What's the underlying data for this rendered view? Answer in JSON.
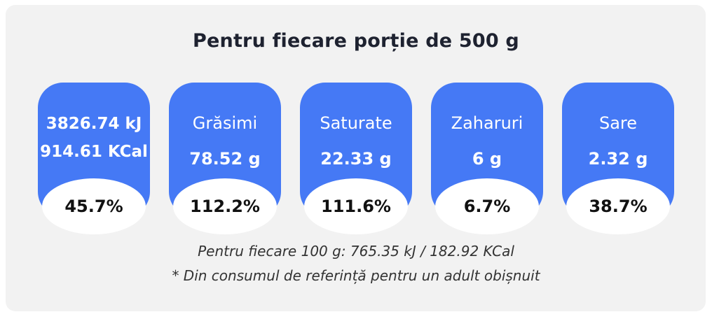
{
  "title": "Pentru fiecare porție de 500 g",
  "cards": [
    {
      "energy_kj": "3826.74 kJ",
      "energy_kcal": "914.61 KCal",
      "percent": "45.7%"
    },
    {
      "name": "Grăsimi",
      "amount": "78.52 g",
      "percent": "112.2%"
    },
    {
      "name": "Saturate",
      "amount": "22.33 g",
      "percent": "111.6%"
    },
    {
      "name": "Zaharuri",
      "amount": "6 g",
      "percent": "6.7%"
    },
    {
      "name": "Sare",
      "amount": "2.32 g",
      "percent": "38.7%"
    }
  ],
  "footnotes": {
    "per_100g": "Pentru fiecare 100 g: 765.35 kJ / 182.92 KCal",
    "reference": "* Din consumul de referință pentru un adult obișnuit"
  },
  "colors": {
    "card": "#4579f5",
    "panel": "#f2f2f2",
    "title": "#1e2230"
  }
}
